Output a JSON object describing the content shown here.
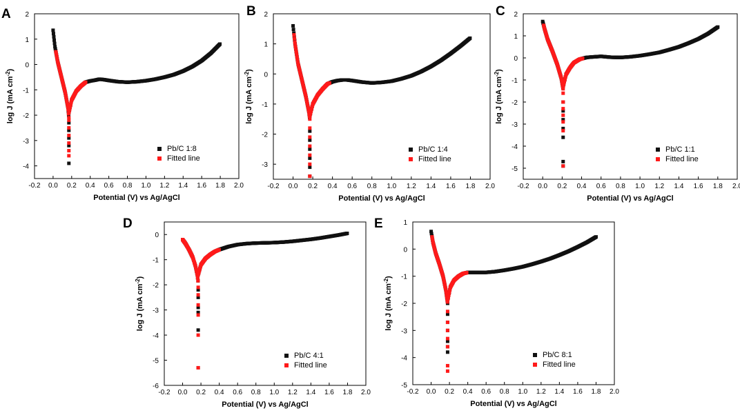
{
  "figure": {
    "legend_line_label": "Fitted line"
  },
  "colors": {
    "data": "#111111",
    "fit": "#ff1a1a"
  },
  "chart_data": [
    {
      "id": "A",
      "type": "scatter",
      "letter": "A",
      "legend": "Pb/C 1:8",
      "fitted_label": "Fitted line",
      "xlabel": "Potential (V) vs Ag/AgCl",
      "ylabel": "log J (mA cm-2)",
      "xlim": [
        -0.2,
        2.0
      ],
      "ylim": [
        -4.5,
        2.0
      ],
      "xticks": [
        "-0.2",
        "0.0",
        "0.2",
        "0.4",
        "0.6",
        "0.8",
        "1.0",
        "1.2",
        "1.4",
        "1.6",
        "1.8",
        "2.0"
      ],
      "yticks": [
        "-4",
        "-3",
        "-2",
        "-1",
        "0",
        "1",
        "2"
      ],
      "ocp": 0.17,
      "anodic": [
        [
          0.17,
          -1.9
        ],
        [
          0.2,
          -1.4
        ],
        [
          0.25,
          -1.05
        ],
        [
          0.3,
          -0.85
        ],
        [
          0.35,
          -0.7
        ],
        [
          0.4,
          -0.65
        ],
        [
          0.45,
          -0.62
        ],
        [
          0.5,
          -0.58
        ],
        [
          0.55,
          -0.6
        ],
        [
          0.6,
          -0.63
        ],
        [
          0.7,
          -0.68
        ],
        [
          0.8,
          -0.7
        ],
        [
          0.9,
          -0.68
        ],
        [
          1.0,
          -0.64
        ],
        [
          1.1,
          -0.58
        ],
        [
          1.2,
          -0.5
        ],
        [
          1.3,
          -0.4
        ],
        [
          1.4,
          -0.26
        ],
        [
          1.5,
          -0.08
        ],
        [
          1.6,
          0.15
        ],
        [
          1.7,
          0.45
        ],
        [
          1.8,
          0.82
        ]
      ],
      "cathodic": [
        [
          0.0,
          1.35
        ],
        [
          0.02,
          0.7
        ],
        [
          0.05,
          0.1
        ],
        [
          0.09,
          -0.5
        ],
        [
          0.13,
          -1.1
        ],
        [
          0.16,
          -1.7
        ],
        [
          0.17,
          -2.1
        ]
      ],
      "spike": [
        -2.3,
        -2.6,
        -2.9,
        -3.2,
        -3.9
      ],
      "fit_anodic": [
        0.17,
        0.35
      ],
      "fit_cathodic": [
        0.03,
        0.17
      ],
      "fit_spike": [
        -2.2,
        -2.5,
        -2.8,
        -3.1,
        -3.4,
        -3.6
      ]
    },
    {
      "id": "B",
      "type": "scatter",
      "letter": "B",
      "legend": "Pb/C 1:4",
      "fitted_label": "Fitted line",
      "xlabel": "Potential (V) vs Ag/AgCl",
      "ylabel": "log J (mA cm-2)",
      "xlim": [
        -0.2,
        2.0
      ],
      "ylim": [
        -3.5,
        2.0
      ],
      "xticks": [
        "-0.2",
        "0.0",
        "0.2",
        "0.4",
        "0.6",
        "0.8",
        "1.0",
        "1.2",
        "1.4",
        "1.6",
        "1.8",
        "2.0"
      ],
      "yticks": [
        "-3",
        "-2",
        "-1",
        "0",
        "1",
        "2"
      ],
      "ocp": 0.17,
      "anodic": [
        [
          0.17,
          -1.4
        ],
        [
          0.2,
          -1.0
        ],
        [
          0.25,
          -0.7
        ],
        [
          0.3,
          -0.5
        ],
        [
          0.35,
          -0.33
        ],
        [
          0.4,
          -0.26
        ],
        [
          0.45,
          -0.22
        ],
        [
          0.5,
          -0.2
        ],
        [
          0.55,
          -0.2
        ],
        [
          0.6,
          -0.22
        ],
        [
          0.7,
          -0.27
        ],
        [
          0.8,
          -0.3
        ],
        [
          0.9,
          -0.28
        ],
        [
          1.0,
          -0.24
        ],
        [
          1.1,
          -0.16
        ],
        [
          1.2,
          -0.06
        ],
        [
          1.3,
          0.08
        ],
        [
          1.4,
          0.25
        ],
        [
          1.5,
          0.45
        ],
        [
          1.6,
          0.68
        ],
        [
          1.7,
          0.93
        ],
        [
          1.8,
          1.2
        ]
      ],
      "cathodic": [
        [
          0.0,
          1.6
        ],
        [
          0.02,
          1.0
        ],
        [
          0.05,
          0.35
        ],
        [
          0.09,
          -0.2
        ],
        [
          0.13,
          -0.75
        ],
        [
          0.16,
          -1.25
        ],
        [
          0.17,
          -1.5
        ]
      ],
      "spike": [
        -1.9,
        -2.2,
        -2.5,
        -2.8,
        -3.1,
        -3.4
      ],
      "fit_anodic": [
        0.17,
        0.37
      ],
      "fit_cathodic": [
        0.01,
        0.17
      ],
      "fit_spike": [
        -1.8,
        -2.1,
        -2.4,
        -2.7,
        -3.0,
        -3.4
      ]
    },
    {
      "id": "C",
      "type": "scatter",
      "letter": "C",
      "legend": "Pb/C 1:1",
      "fitted_label": "Fitted line",
      "xlabel": "Potential (V) vs Ag/AgCl",
      "ylabel": "log J (mA cm-2)",
      "xlim": [
        -0.2,
        2.0
      ],
      "ylim": [
        -5.5,
        2.0
      ],
      "xticks": [
        "-0.2",
        "0.0",
        "0.2",
        "0.4",
        "0.6",
        "0.8",
        "1.0",
        "1.2",
        "1.4",
        "1.6",
        "1.8",
        "2.0"
      ],
      "yticks": [
        "-5",
        "-4",
        "-3",
        "-2",
        "-1",
        "0",
        "1",
        "2"
      ],
      "ocp": 0.21,
      "anodic": [
        [
          0.21,
          -1.3
        ],
        [
          0.24,
          -0.75
        ],
        [
          0.28,
          -0.45
        ],
        [
          0.32,
          -0.22
        ],
        [
          0.38,
          -0.06
        ],
        [
          0.45,
          0.02
        ],
        [
          0.5,
          0.04
        ],
        [
          0.6,
          0.07
        ],
        [
          0.7,
          0.03
        ],
        [
          0.8,
          0.02
        ],
        [
          0.9,
          0.05
        ],
        [
          1.0,
          0.1
        ],
        [
          1.1,
          0.17
        ],
        [
          1.2,
          0.25
        ],
        [
          1.3,
          0.37
        ],
        [
          1.4,
          0.5
        ],
        [
          1.5,
          0.67
        ],
        [
          1.6,
          0.86
        ],
        [
          1.7,
          1.1
        ],
        [
          1.8,
          1.4
        ]
      ],
      "cathodic": [
        [
          0.0,
          1.65
        ],
        [
          0.02,
          1.3
        ],
        [
          0.05,
          0.85
        ],
        [
          0.1,
          0.3
        ],
        [
          0.15,
          -0.3
        ],
        [
          0.19,
          -0.9
        ],
        [
          0.21,
          -1.4
        ]
      ],
      "spike": [
        -2.0,
        -2.4,
        -2.8,
        -3.2,
        -3.6,
        -4.7,
        -4.9
      ],
      "fit_anodic": [
        0.21,
        0.41
      ],
      "fit_cathodic": [
        0.01,
        0.21
      ],
      "fit_spike": [
        -1.6,
        -2.0,
        -2.3,
        -2.6,
        -2.9,
        -3.3,
        -4.9
      ]
    },
    {
      "id": "D",
      "type": "scatter",
      "letter": "D",
      "legend": "Pb/C 4:1",
      "fitted_label": "Fitted line",
      "xlabel": "Potential (V) vs Ag/AgCl",
      "ylabel": "log J (mA cm-2)",
      "xlim": [
        -0.2,
        2.0
      ],
      "ylim": [
        -6.0,
        0.5
      ],
      "xticks": [
        "-0.2",
        "0.0",
        "0.2",
        "0.4",
        "0.6",
        "0.8",
        "1.0",
        "1.2",
        "1.4",
        "1.6",
        "1.8",
        "2.0"
      ],
      "yticks": [
        "-6",
        "-5",
        "-4",
        "-3",
        "-2",
        "-1",
        "0"
      ],
      "ocp": 0.17,
      "anodic": [
        [
          0.17,
          -1.6
        ],
        [
          0.2,
          -1.2
        ],
        [
          0.25,
          -0.95
        ],
        [
          0.3,
          -0.8
        ],
        [
          0.35,
          -0.68
        ],
        [
          0.4,
          -0.6
        ],
        [
          0.5,
          -0.48
        ],
        [
          0.6,
          -0.4
        ],
        [
          0.7,
          -0.36
        ],
        [
          0.8,
          -0.34
        ],
        [
          0.9,
          -0.33
        ],
        [
          1.0,
          -0.32
        ],
        [
          1.1,
          -0.3
        ],
        [
          1.2,
          -0.27
        ],
        [
          1.3,
          -0.23
        ],
        [
          1.4,
          -0.19
        ],
        [
          1.5,
          -0.14
        ],
        [
          1.6,
          -0.08
        ],
        [
          1.7,
          -0.02
        ],
        [
          1.8,
          0.05
        ]
      ],
      "cathodic": [
        [
          0.0,
          -0.2
        ],
        [
          0.03,
          -0.35
        ],
        [
          0.07,
          -0.6
        ],
        [
          0.11,
          -0.9
        ],
        [
          0.14,
          -1.25
        ],
        [
          0.16,
          -1.6
        ],
        [
          0.17,
          -1.9
        ]
      ],
      "spike": [
        -2.2,
        -2.5,
        -2.9,
        -3.1,
        -3.8,
        -5.3
      ],
      "fit_anodic": [
        0.17,
        0.4
      ],
      "fit_cathodic": [
        0.0,
        0.17
      ],
      "fit_spike": [
        -2.1,
        -2.4,
        -2.8,
        -3.2,
        -4.0,
        -5.3
      ]
    },
    {
      "id": "E",
      "type": "scatter",
      "letter": "E",
      "legend": "Pb/C 8:1",
      "fitted_label": "Fitted line",
      "xlabel": "Potential (V) vs Ag/AgCl",
      "ylabel": "log J (mA cm-2)",
      "xlim": [
        -0.2,
        2.0
      ],
      "ylim": [
        -5.0,
        1.0
      ],
      "xticks": [
        "-0.2",
        "0.0",
        "0.2",
        "0.4",
        "0.6",
        "0.8",
        "1.0",
        "1.2",
        "1.4",
        "1.6",
        "1.8",
        "2.0"
      ],
      "yticks": [
        "-5",
        "-4",
        "-3",
        "-2",
        "-1",
        "0",
        "1"
      ],
      "ocp": 0.18,
      "anodic": [
        [
          0.18,
          -1.9
        ],
        [
          0.21,
          -1.4
        ],
        [
          0.25,
          -1.15
        ],
        [
          0.3,
          -1.0
        ],
        [
          0.35,
          -0.9
        ],
        [
          0.4,
          -0.86
        ],
        [
          0.5,
          -0.86
        ],
        [
          0.6,
          -0.86
        ],
        [
          0.7,
          -0.83
        ],
        [
          0.8,
          -0.78
        ],
        [
          0.9,
          -0.72
        ],
        [
          1.0,
          -0.65
        ],
        [
          1.1,
          -0.56
        ],
        [
          1.2,
          -0.46
        ],
        [
          1.3,
          -0.35
        ],
        [
          1.4,
          -0.22
        ],
        [
          1.5,
          -0.08
        ],
        [
          1.6,
          0.08
        ],
        [
          1.7,
          0.25
        ],
        [
          1.8,
          0.45
        ]
      ],
      "cathodic": [
        [
          0.0,
          0.65
        ],
        [
          0.02,
          0.25
        ],
        [
          0.05,
          -0.15
        ],
        [
          0.09,
          -0.55
        ],
        [
          0.13,
          -1.0
        ],
        [
          0.16,
          -1.5
        ],
        [
          0.18,
          -2.0
        ]
      ],
      "spike": [
        -2.4,
        -2.7,
        -3.0,
        -3.4,
        -3.6,
        -3.8
      ],
      "fit_anodic": [
        0.18,
        0.39
      ],
      "fit_cathodic": [
        0.01,
        0.18
      ],
      "fit_spike": [
        -2.3,
        -2.7,
        -3.0,
        -3.3,
        -3.6,
        -4.3,
        -4.5
      ]
    }
  ]
}
